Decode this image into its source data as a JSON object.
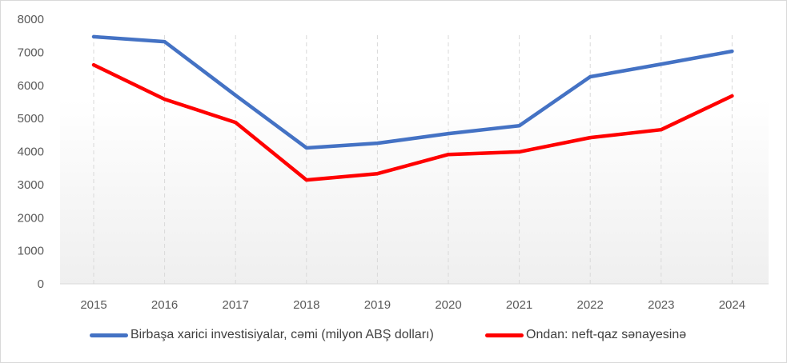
{
  "chart_data": {
    "type": "line",
    "categories": [
      "2015",
      "2016",
      "2017",
      "2018",
      "2019",
      "2020",
      "2021",
      "2022",
      "2023",
      "2024"
    ],
    "ylim": [
      0,
      8000
    ],
    "yticks": [
      0,
      1000,
      2000,
      3000,
      4000,
      5000,
      6000,
      7000,
      8000
    ],
    "grid": "vertical dashed",
    "legend_position": "bottom",
    "series": [
      {
        "name": "Birbaşa xarici investisiyalar, cəmi (milyon ABŞ dolları)",
        "color": "#4472c4",
        "values": [
          7470,
          7320,
          5700,
          4110,
          4250,
          4540,
          4780,
          6260,
          6640,
          7030
        ]
      },
      {
        "name": "Ondan: neft-qaz sənayesinə",
        "color": "#ff0000",
        "values": [
          6620,
          5580,
          4880,
          3140,
          3330,
          3910,
          3990,
          4420,
          4660,
          5680
        ]
      }
    ]
  }
}
